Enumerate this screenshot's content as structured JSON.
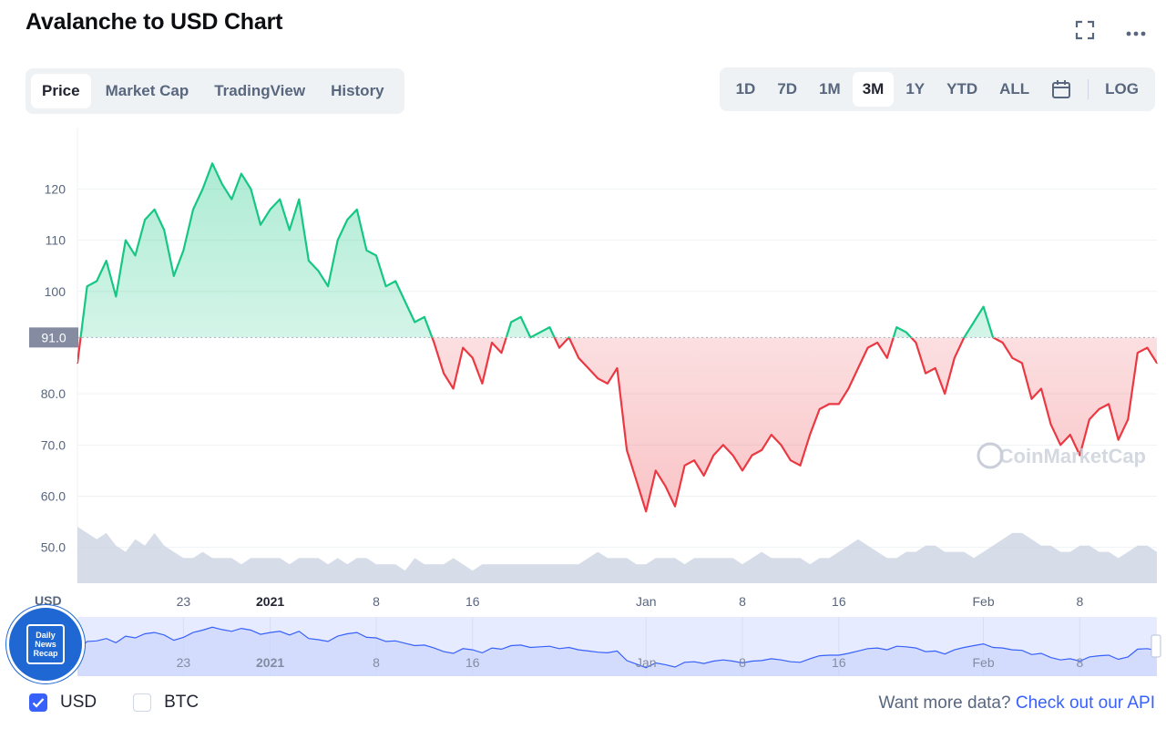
{
  "header": {
    "title": "Avalanche to USD Chart"
  },
  "tabs": [
    {
      "label": "Price",
      "active": true
    },
    {
      "label": "Market Cap",
      "active": false
    },
    {
      "label": "TradingView",
      "active": false
    },
    {
      "label": "History",
      "active": false
    }
  ],
  "ranges": [
    {
      "label": "1D",
      "active": false
    },
    {
      "label": "7D",
      "active": false
    },
    {
      "label": "1M",
      "active": false
    },
    {
      "label": "3M",
      "active": true
    },
    {
      "label": "1Y",
      "active": false
    },
    {
      "label": "YTD",
      "active": false
    },
    {
      "label": "ALL",
      "active": false
    }
  ],
  "log_label": "LOG",
  "colors": {
    "up": "#16c784",
    "down": "#ea3943",
    "accent": "#3861fb",
    "volume": "#cfd6e4"
  },
  "chart_data": {
    "type": "line",
    "currency_axis_label": "USD",
    "reference_price": 91.0,
    "reference_label": "91.0",
    "ylim": [
      43,
      132
    ],
    "y_ticks": [
      {
        "value": 120,
        "label": "120"
      },
      {
        "value": 110,
        "label": "110"
      },
      {
        "value": 100,
        "label": "100"
      },
      {
        "value": 80,
        "label": "80.0"
      },
      {
        "value": 70,
        "label": "70.0"
      },
      {
        "value": 60,
        "label": "60.0"
      },
      {
        "value": 50,
        "label": "50.0"
      }
    ],
    "x_index_range": [
      0,
      112
    ],
    "x_ticks": [
      {
        "index": 11,
        "label": "23",
        "bold": false
      },
      {
        "index": 20,
        "label": "2021",
        "bold": true
      },
      {
        "index": 31,
        "label": "8",
        "bold": false
      },
      {
        "index": 41,
        "label": "16",
        "bold": false
      },
      {
        "index": 59,
        "label": "Jan",
        "bold": false
      },
      {
        "index": 69,
        "label": "8",
        "bold": false
      },
      {
        "index": 79,
        "label": "16",
        "bold": false
      },
      {
        "index": 94,
        "label": "Feb",
        "bold": false
      },
      {
        "index": 104,
        "label": "8",
        "bold": false
      }
    ],
    "prices": [
      86,
      101,
      102,
      106,
      99,
      110,
      107,
      114,
      116,
      112,
      103,
      108,
      116,
      120,
      125,
      121,
      118,
      123,
      120,
      113,
      116,
      118,
      112,
      118,
      106,
      104,
      101,
      110,
      114,
      116,
      108,
      107,
      101,
      102,
      98,
      94,
      95,
      90,
      84,
      81,
      89,
      87,
      82,
      90,
      88,
      94,
      95,
      91,
      92,
      93,
      89,
      91,
      87,
      85,
      83,
      82,
      85,
      69,
      63,
      57,
      65,
      62,
      58,
      66,
      67,
      64,
      68,
      70,
      68,
      65,
      68,
      69,
      72,
      70,
      67,
      66,
      72,
      77,
      78,
      78,
      81,
      85,
      89,
      90,
      87,
      93,
      92,
      90,
      84,
      85,
      80,
      87,
      91,
      94,
      97,
      91,
      90,
      87,
      86,
      79,
      81,
      74,
      70,
      72,
      68,
      75,
      77,
      78,
      71,
      75,
      88,
      89,
      86
    ],
    "volume": [
      9,
      8,
      7,
      8,
      6,
      5,
      7,
      6,
      8,
      6,
      5,
      4,
      4,
      5,
      4,
      4,
      4,
      3,
      4,
      4,
      4,
      4,
      3,
      4,
      4,
      4,
      3,
      4,
      3,
      4,
      4,
      3,
      3,
      3,
      2,
      4,
      3,
      3,
      3,
      4,
      3,
      2,
      3,
      3,
      3,
      3,
      3,
      3,
      3,
      3,
      3,
      3,
      3,
      4,
      5,
      4,
      4,
      4,
      3,
      3,
      4,
      4,
      4,
      3,
      4,
      4,
      4,
      4,
      4,
      3,
      4,
      5,
      4,
      4,
      4,
      4,
      3,
      4,
      4,
      5,
      6,
      7,
      6,
      5,
      4,
      4,
      5,
      5,
      6,
      6,
      5,
      5,
      5,
      4,
      5,
      6,
      7,
      8,
      8,
      7,
      6,
      6,
      5,
      5,
      6,
      6,
      5,
      5,
      4,
      5,
      6,
      6,
      5
    ],
    "navigator": {
      "x_labels": [
        {
          "index": 11,
          "label": "23"
        },
        {
          "index": 20,
          "label": "2021"
        },
        {
          "index": 31,
          "label": "8"
        },
        {
          "index": 41,
          "label": "16"
        },
        {
          "index": 59,
          "label": "Jan"
        },
        {
          "index": 69,
          "label": "8"
        },
        {
          "index": 79,
          "label": "16"
        },
        {
          "index": 94,
          "label": "Feb"
        },
        {
          "index": 104,
          "label": "8"
        }
      ]
    },
    "watermark": "CoinMarketCap"
  },
  "legend": {
    "usd_label": "USD",
    "btc_label": "BTC"
  },
  "footer": {
    "prefix": "Want more data?",
    "link": "Check out our API"
  },
  "badge": {
    "line1": "Daily",
    "line2": "News",
    "line3": "Recap"
  }
}
